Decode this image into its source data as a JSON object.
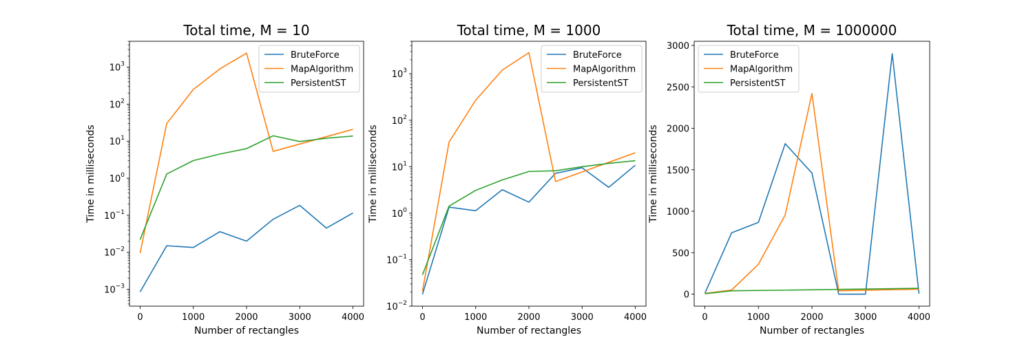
{
  "chart_data": [
    {
      "type": "line",
      "title": "Total time, M = 10",
      "xlabel": "Number of rectangles",
      "ylabel": "Time in milliseconds",
      "yscale": "log",
      "xlim": [
        -200,
        4200
      ],
      "ylim": [
        0.00035,
        5000
      ],
      "xticks": [
        0,
        1000,
        2000,
        3000,
        4000
      ],
      "xtick_labels": [
        "0",
        "1000",
        "2000",
        "3000",
        "4000"
      ],
      "yticks": [
        0.001,
        0.01,
        0.1,
        1,
        10,
        100,
        1000
      ],
      "ytick_labels": [
        {
          "base": "10",
          "exp": "−3"
        },
        {
          "base": "10",
          "exp": "−2"
        },
        {
          "base": "10",
          "exp": "−1"
        },
        {
          "base": "10",
          "exp": "0"
        },
        {
          "base": "10",
          "exp": "1"
        },
        {
          "base": "10",
          "exp": "2"
        },
        {
          "base": "10",
          "exp": "3"
        }
      ],
      "legend": "top-right",
      "x": [
        0,
        500,
        1000,
        1500,
        2000,
        2500,
        3000,
        3500,
        4000
      ],
      "series": [
        {
          "name": "BruteForce",
          "color": "#1f77b4",
          "values": [
            0.00085,
            0.015,
            0.0135,
            0.036,
            0.02,
            0.078,
            0.185,
            0.045,
            0.115
          ]
        },
        {
          "name": "MapAlgorithm",
          "color": "#ff7f0e",
          "values": [
            0.0095,
            30,
            250,
            900,
            2400,
            5.3,
            null,
            null,
            21
          ]
        },
        {
          "name": "PersistentST",
          "color": "#2ca02c",
          "values": [
            0.022,
            1.3,
            3.0,
            4.5,
            6.3,
            14,
            9.8,
            12,
            13.8
          ]
        }
      ],
      "grid": false
    },
    {
      "type": "line",
      "title": "Total time, M = 1000",
      "xlabel": "Number of rectangles",
      "ylabel": "Time in milliseconds",
      "yscale": "log",
      "xlim": [
        -200,
        4200
      ],
      "ylim": [
        0.01,
        5000
      ],
      "xticks": [
        0,
        1000,
        2000,
        3000,
        4000
      ],
      "xtick_labels": [
        "0",
        "1000",
        "2000",
        "3000",
        "4000"
      ],
      "yticks": [
        0.01,
        0.1,
        1,
        10,
        100,
        1000
      ],
      "ytick_labels": [
        {
          "base": "10",
          "exp": "−2"
        },
        {
          "base": "10",
          "exp": "−1"
        },
        {
          "base": "10",
          "exp": "0"
        },
        {
          "base": "10",
          "exp": "1"
        },
        {
          "base": "10",
          "exp": "2"
        },
        {
          "base": "10",
          "exp": "3"
        }
      ],
      "legend": "top-right",
      "x": [
        0,
        500,
        1000,
        1500,
        2000,
        2500,
        3000,
        3500,
        4000
      ],
      "series": [
        {
          "name": "BruteForce",
          "color": "#1f77b4",
          "values": [
            0.018,
            1.35,
            1.13,
            3.2,
            1.73,
            7.2,
            9.5,
            3.6,
            10.8
          ]
        },
        {
          "name": "MapAlgorithm",
          "color": "#ff7f0e",
          "values": [
            0.021,
            34,
            270,
            1200,
            2850,
            4.8,
            null,
            null,
            20
          ]
        },
        {
          "name": "PersistentST",
          "color": "#2ca02c",
          "values": [
            0.047,
            1.42,
            3.1,
            5.2,
            7.9,
            8.2,
            10,
            11.8,
            13.5
          ]
        }
      ],
      "grid": false
    },
    {
      "type": "line",
      "title": "Total time, M = 1000000",
      "xlabel": "Number of rectangles",
      "ylabel": "Time in milliseconds",
      "yscale": "linear",
      "xlim": [
        -200,
        4200
      ],
      "ylim": [
        -145,
        3050
      ],
      "xticks": [
        0,
        1000,
        2000,
        3000,
        4000
      ],
      "xtick_labels": [
        "0",
        "1000",
        "2000",
        "3000",
        "4000"
      ],
      "yticks": [
        0,
        500,
        1000,
        1500,
        2000,
        2500,
        3000
      ],
      "ytick_labels": [
        "0",
        "500",
        "1000",
        "1500",
        "2000",
        "2500",
        "3000"
      ],
      "legend": "top-left",
      "x": [
        0,
        500,
        1000,
        1500,
        2000,
        2500,
        3000,
        3500,
        4000
      ],
      "series": [
        {
          "name": "BruteForce",
          "color": "#1f77b4",
          "values": [
            10,
            740,
            865,
            1815,
            1460,
            0,
            0,
            2900,
            5
          ]
        },
        {
          "name": "MapAlgorithm",
          "color": "#ff7f0e",
          "values": [
            8,
            50,
            360,
            955,
            2420,
            40,
            null,
            null,
            60
          ]
        },
        {
          "name": "PersistentST",
          "color": "#2ca02c",
          "values": [
            5,
            40,
            null,
            null,
            null,
            null,
            null,
            null,
            70
          ]
        }
      ],
      "grid": false
    }
  ]
}
